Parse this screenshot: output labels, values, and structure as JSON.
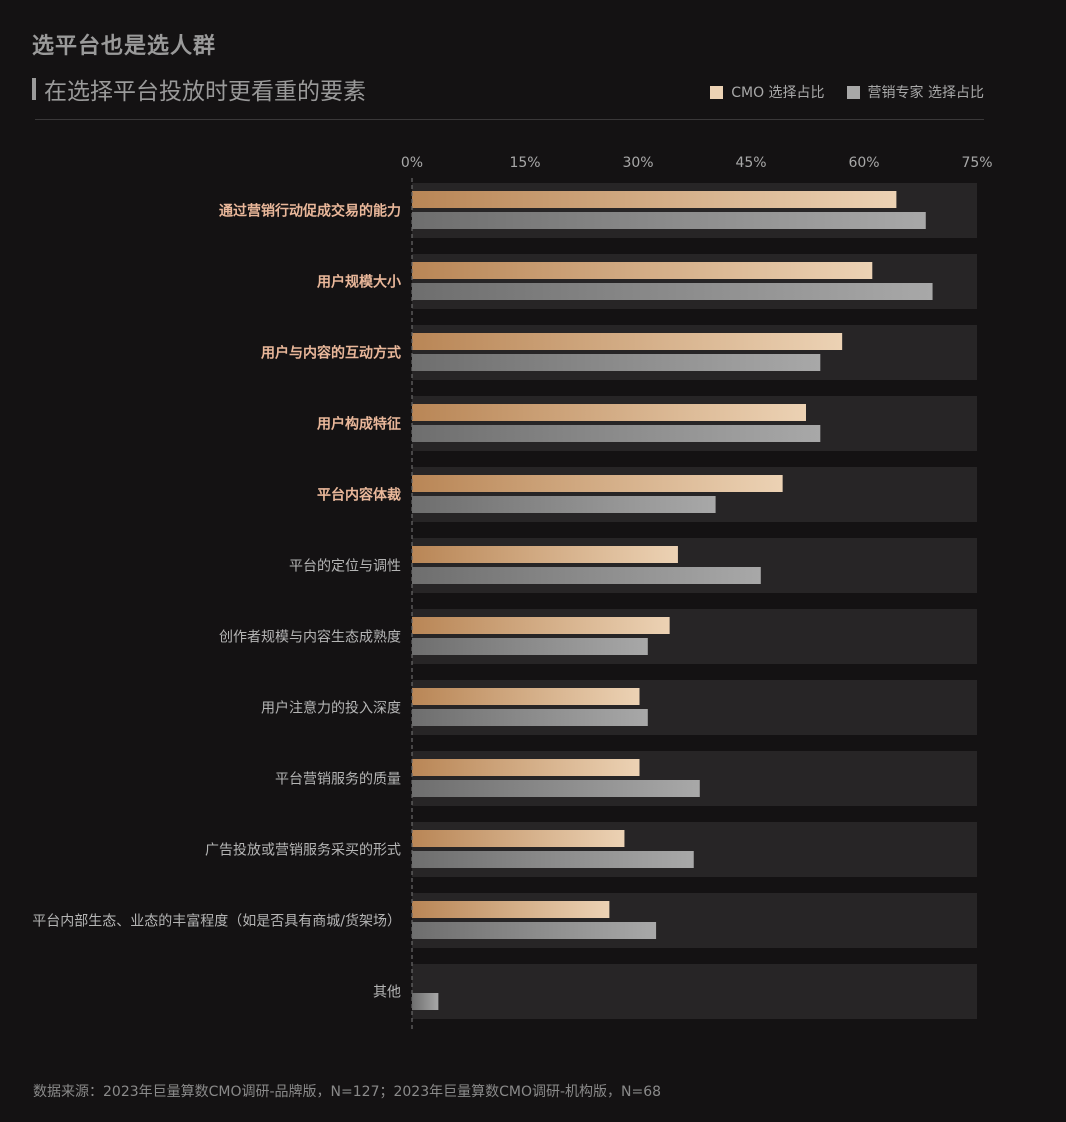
{
  "header": {
    "title": "选平台也是选人群",
    "subtitle": "在选择平台投放时更看重的要素"
  },
  "legend": {
    "cmo_label": "CMO 选择占比",
    "expert_label": "营销专家 选择占比"
  },
  "colors": {
    "background": "#141213",
    "row_band": "#272526",
    "cmo_gradient_start": "#b98656",
    "cmo_gradient_end": "#ecd2b4",
    "expert_gradient_start": "#6e6e6e",
    "expert_gradient_end": "#a8a8a8",
    "highlight_label": "#e9b79a",
    "normal_label": "#b5b5b5",
    "tick_label": "#a8a8a8",
    "axis_line": "#6a6a6a"
  },
  "chart_data": {
    "type": "bar",
    "orientation": "horizontal",
    "xlim": [
      0,
      75
    ],
    "ticks": [
      "0%",
      "15%",
      "30%",
      "45%",
      "60%",
      "75%"
    ],
    "tick_values": [
      0,
      15,
      30,
      45,
      60,
      75
    ],
    "categories": [
      "通过营销行动促成交易的能力",
      "用户规模大小",
      "用户与内容的互动方式",
      "用户构成特征",
      "平台内容体裁",
      "平台的定位与调性",
      "创作者规模与内容生态成熟度",
      "用户注意力的投入深度",
      "平台营销服务的质量",
      "广告投放或营销服务采买的形式",
      "平台内部生态、业态的丰富程度（如是否具有商城/货架场）",
      "其他"
    ],
    "highlighted": [
      true,
      true,
      true,
      true,
      true,
      false,
      false,
      false,
      false,
      false,
      false,
      false
    ],
    "series": [
      {
        "name": "CMO 选择占比",
        "values": [
          64.3,
          61.1,
          57.1,
          52.3,
          49.2,
          35.3,
          34.2,
          30.2,
          30.2,
          28.2,
          26.2,
          0
        ]
      },
      {
        "name": "营销专家 选择占比",
        "values": [
          68.2,
          69.1,
          54.2,
          54.2,
          40.3,
          46.3,
          31.3,
          31.3,
          38.2,
          37.4,
          32.4,
          3.5
        ]
      }
    ],
    "grid": false,
    "legend_position": "top-right"
  },
  "footer": {
    "source": "数据来源：2023年巨量算数CMO调研-品牌版，N=127；2023年巨量算数CMO调研-机构版，N=68"
  }
}
